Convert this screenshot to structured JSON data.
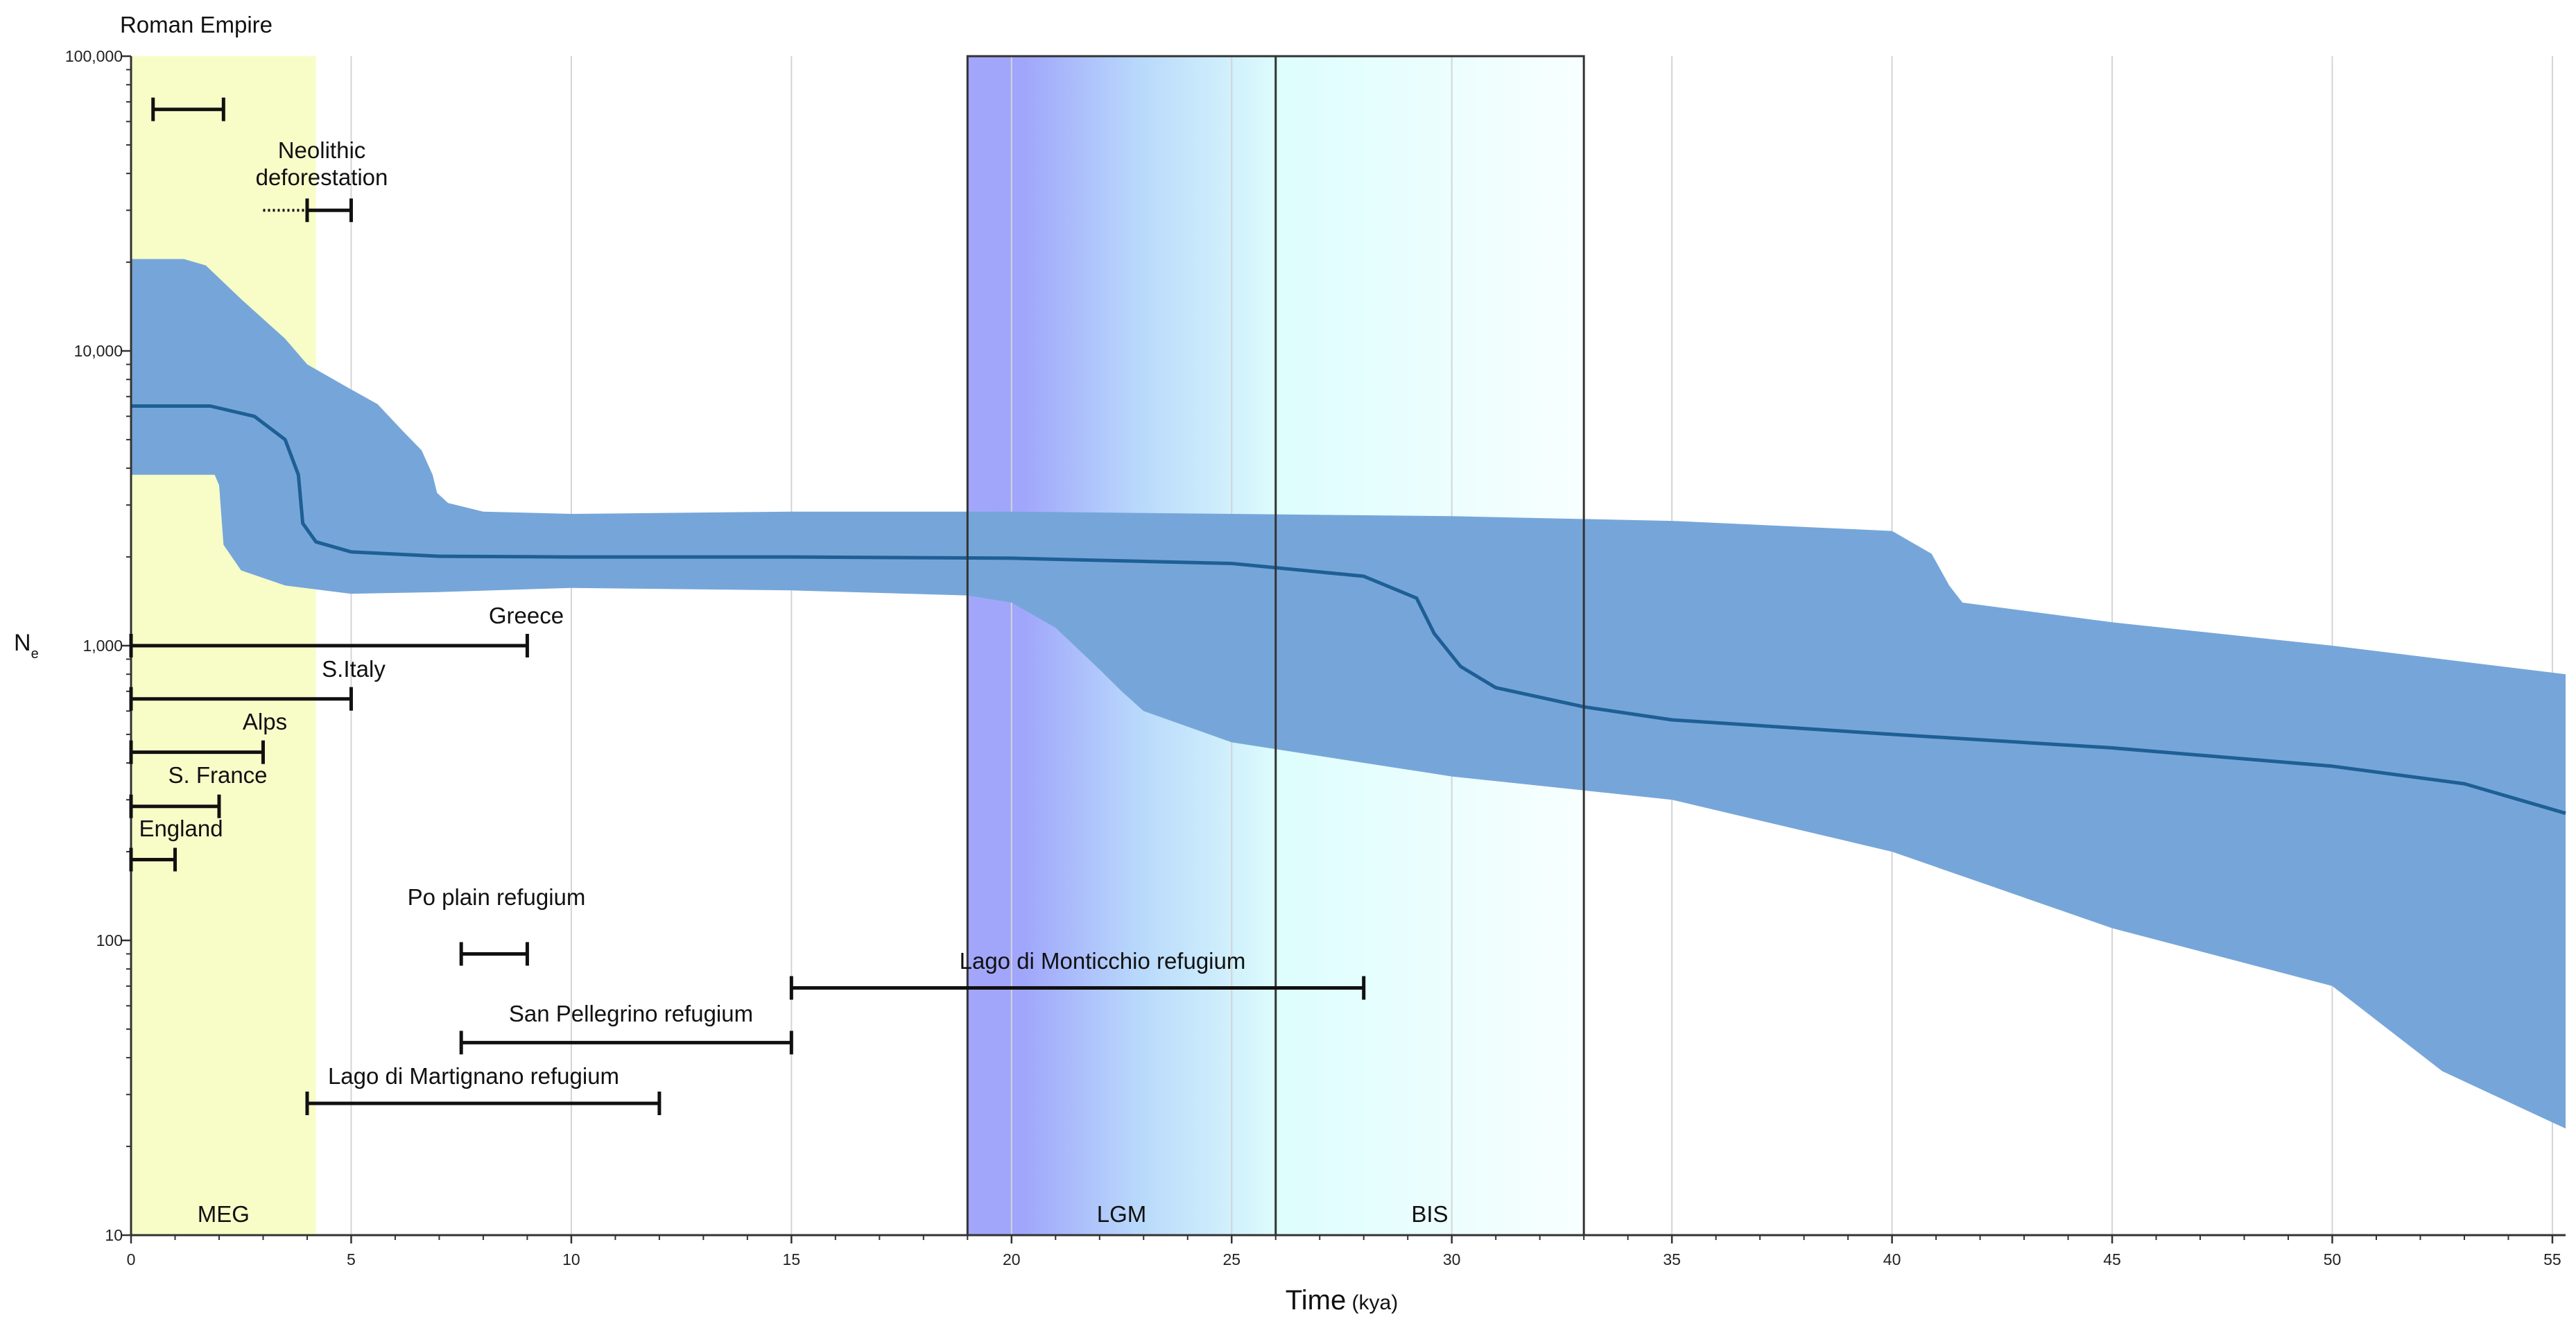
{
  "chart_data": {
    "type": "area",
    "title": "",
    "xlabel": "Time",
    "xlabel_unit": "(kya)",
    "ylabel": "N",
    "ylabel_sub": "e",
    "scale_y": "log",
    "xlim": [
      0,
      55.3
    ],
    "ylim": [
      10,
      100000
    ],
    "grid": "vertical",
    "x_ticks": [
      "0",
      "5",
      "10",
      "15",
      "20",
      "25",
      "30",
      "35",
      "40",
      "45",
      "50",
      "55"
    ],
    "y_ticks": [
      {
        "value": 100000,
        "label": "100,000"
      },
      {
        "value": 10000,
        "label": "10,000"
      },
      {
        "value": 1000,
        "label": "1,000"
      },
      {
        "value": 100,
        "label": "100"
      },
      {
        "value": 10,
        "label": "10"
      }
    ],
    "colors": {
      "band": "#76a6d9",
      "median": "#1e5f95",
      "meg": "#f8fdc8",
      "lgm": "#a3a6fa",
      "bis": "#e2fdfd",
      "interval": "#111111"
    },
    "periods": [
      {
        "label": "MEG",
        "start": 0,
        "end": 4.2
      },
      {
        "label": "LGM",
        "start": 19,
        "end": 26
      },
      {
        "label": "BIS",
        "start": 26,
        "end": 33
      }
    ],
    "series": [
      {
        "role": "median",
        "x": [
          0,
          1.8,
          2.8,
          3.5,
          3.8,
          3.9,
          4.2,
          5,
          7,
          10,
          15,
          20,
          25,
          28,
          29.2,
          29.6,
          30.2,
          31,
          33,
          35,
          40,
          45,
          50,
          53,
          55.3
        ],
        "y": [
          6500,
          6500,
          6000,
          5000,
          3800,
          2600,
          2250,
          2080,
          2010,
          2000,
          2000,
          1980,
          1900,
          1720,
          1450,
          1100,
          850,
          720,
          620,
          560,
          500,
          450,
          390,
          340,
          270
        ]
      },
      {
        "role": "upper",
        "x": [
          0,
          1.2,
          1.7,
          2.5,
          3.5,
          4,
          5,
          5.6,
          6.2,
          6.6,
          6.85,
          6.95,
          7.2,
          8,
          10,
          15,
          20,
          25,
          30,
          35,
          40,
          40.9,
          41.3,
          41.6,
          45,
          50,
          55.3
        ],
        "y": [
          20500,
          20500,
          19500,
          15000,
          11000,
          9000,
          7400,
          6600,
          5300,
          4600,
          3800,
          3300,
          3050,
          2850,
          2800,
          2850,
          2850,
          2800,
          2750,
          2650,
          2450,
          2050,
          1600,
          1400,
          1200,
          1000,
          800
        ]
      },
      {
        "role": "lower",
        "x": [
          0,
          1.9,
          2.0,
          2.1,
          2.5,
          3.5,
          5,
          7,
          10,
          15,
          19,
          20,
          21,
          22,
          22.5,
          23,
          25,
          30,
          35,
          40,
          45,
          50,
          52.5,
          55.3
        ],
        "y": [
          3800,
          3800,
          3500,
          2200,
          1800,
          1600,
          1500,
          1520,
          1570,
          1540,
          1480,
          1400,
          1150,
          830,
          700,
          600,
          470,
          360,
          300,
          200,
          110,
          70,
          36,
          23
        ]
      }
    ],
    "intervals": [
      {
        "label": "Roman Empire",
        "start": 0.5,
        "end": 2.1,
        "y": 66000
      },
      {
        "label": "Neolithic deforestation",
        "start": 4,
        "end": 5,
        "dotted_from": 3,
        "y": 30000
      },
      {
        "label": "Greece",
        "start": 0,
        "end": 9,
        "y": 1000
      },
      {
        "label": "S.Italy",
        "start": 0,
        "end": 5,
        "y": 660
      },
      {
        "label": "Alps",
        "start": 0,
        "end": 3,
        "y": 435
      },
      {
        "label": "S. France",
        "start": 0,
        "end": 2,
        "y": 285
      },
      {
        "label": "England",
        "start": 0,
        "end": 1,
        "y": 188
      },
      {
        "label": "Po plain refugium",
        "start": 7.5,
        "end": 9,
        "y": 90
      },
      {
        "label": "Lago di Monticchio refugium",
        "start": 15,
        "end": 28,
        "y": 69
      },
      {
        "label": "San Pellegrino refugium",
        "start": 7.5,
        "end": 15,
        "y": 45
      },
      {
        "label": "Lago di Martignano refugium",
        "start": 4,
        "end": 12,
        "y": 28
      }
    ]
  }
}
